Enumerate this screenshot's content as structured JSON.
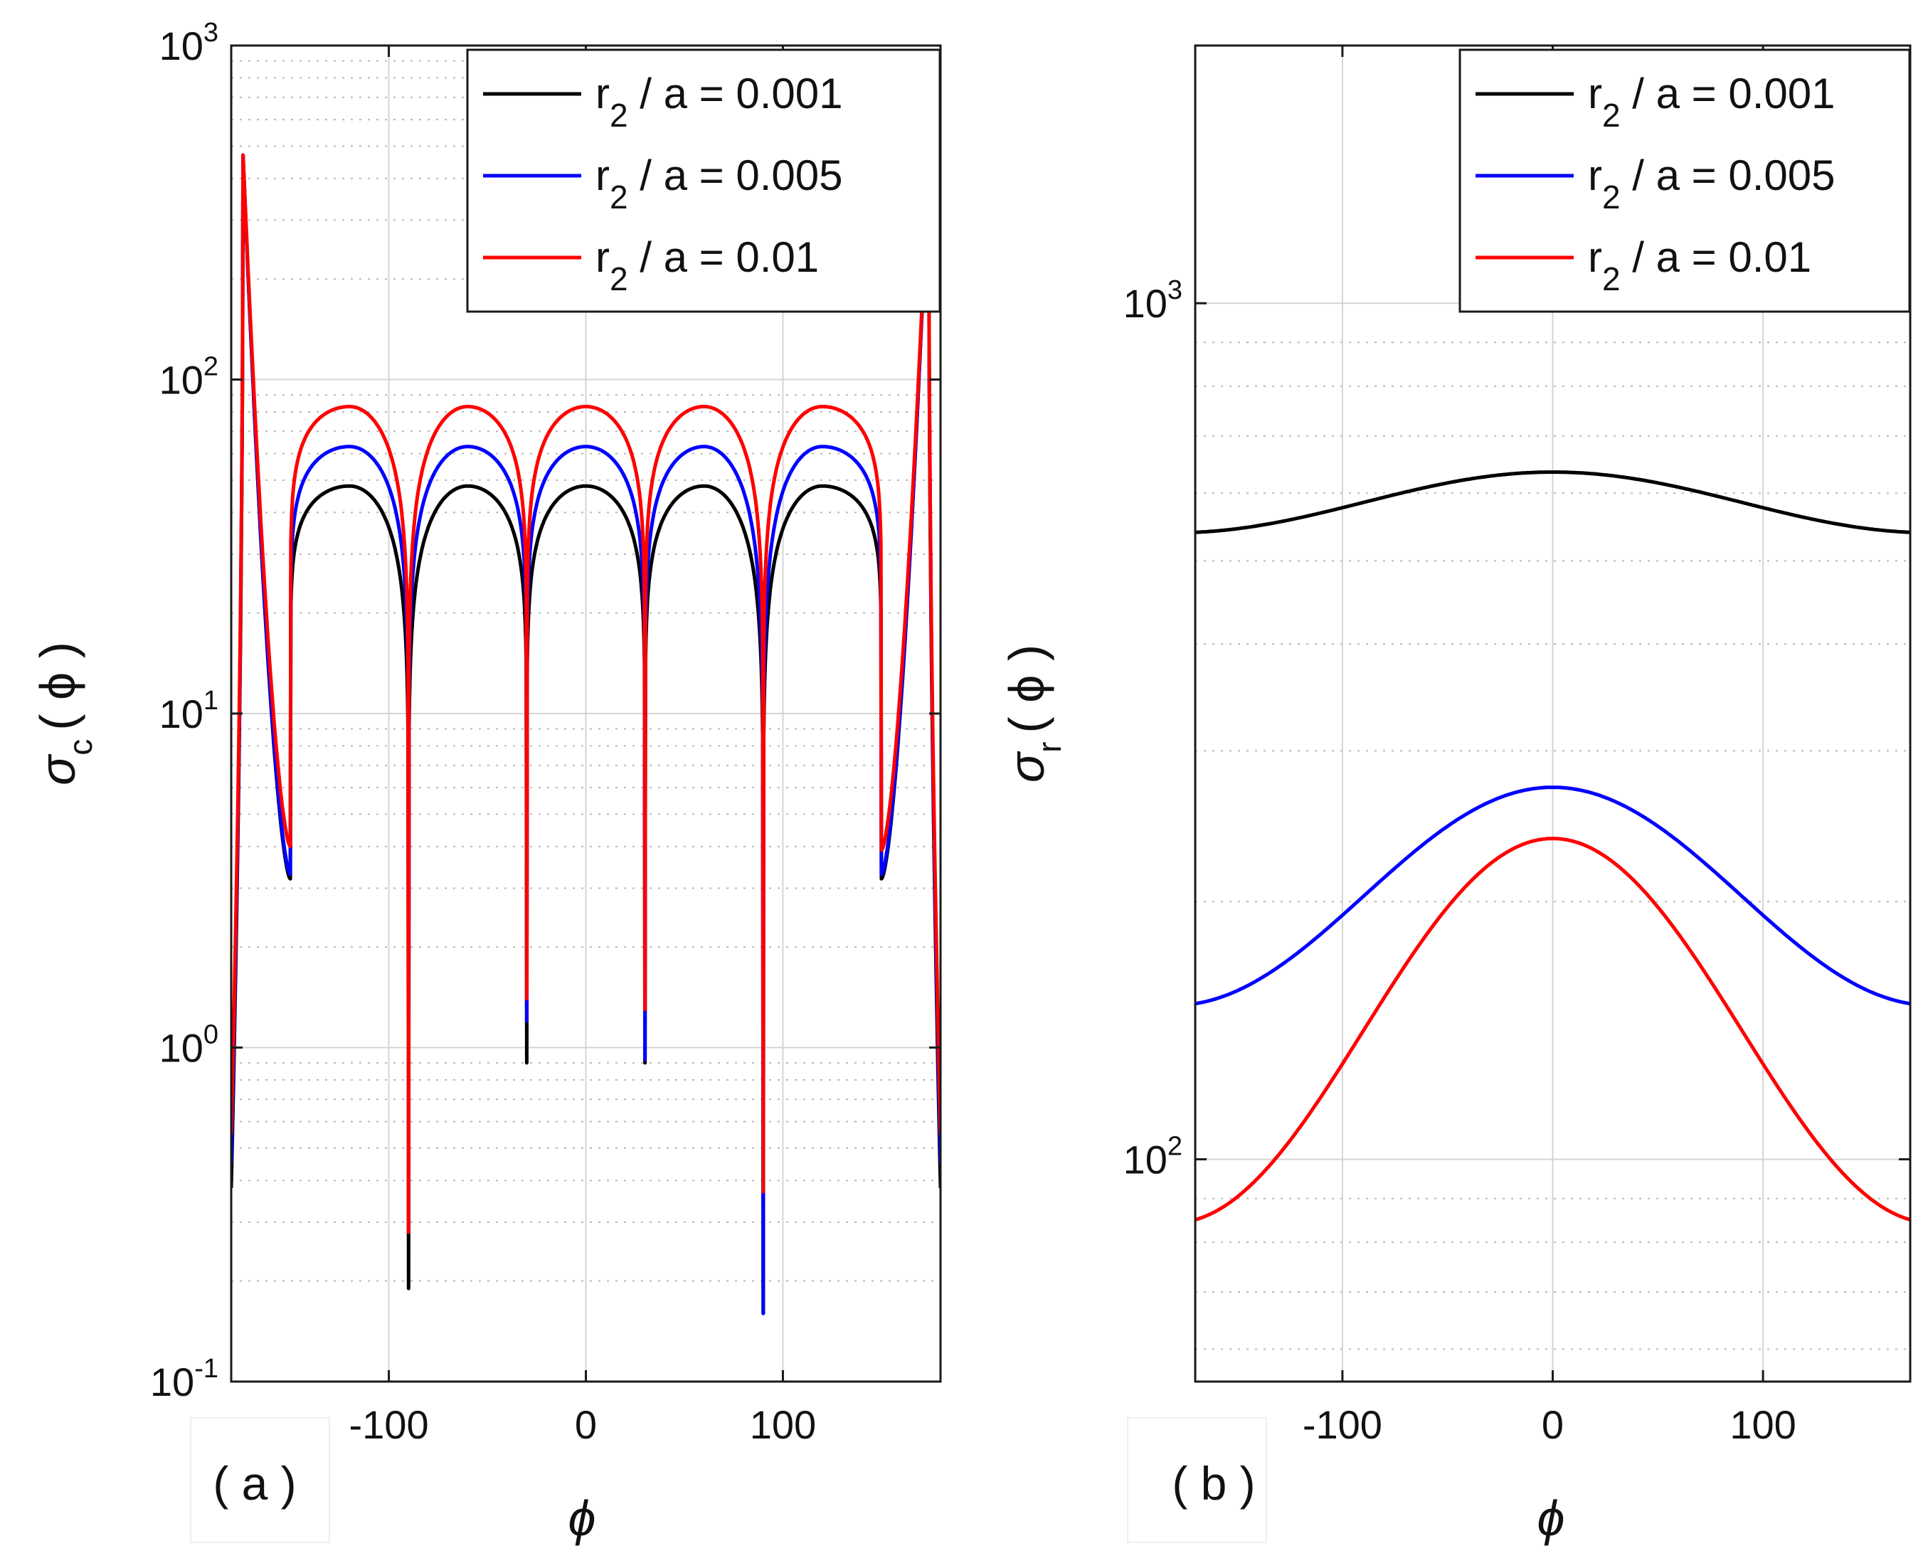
{
  "chart_data": [
    {
      "type": "line",
      "panel_label": "( a )",
      "xlabel": "ϕ",
      "ylabel": {
        "base": "σ",
        "subscript": "c",
        "arg": "( ϕ )"
      },
      "yscale": "log",
      "xlim": [
        -180,
        180
      ],
      "ylim": [
        0.1,
        1000
      ],
      "xticks": [
        -100,
        0,
        100
      ],
      "xtick_labels": [
        "-100",
        "0",
        "100"
      ],
      "yticks": [
        0.1,
        1,
        10,
        100,
        1000
      ],
      "ytick_labels": [
        {
          "base": "10",
          "exp": "-1"
        },
        {
          "base": "10",
          "exp": "0"
        },
        {
          "base": "10",
          "exp": "1"
        },
        {
          "base": "10",
          "exp": "2"
        },
        {
          "base": "10",
          "exp": "3"
        }
      ],
      "grid": true,
      "legend_position": "top-right",
      "legend": [
        {
          "r": "r",
          "sub": "2",
          "rest": " / a = 0.001",
          "color": "#000000"
        },
        {
          "r": "r",
          "sub": "2",
          "rest": " / a = 0.005",
          "color": "#0000ff"
        },
        {
          "r": "r",
          "sub": "2",
          "rest": " / a = 0.01",
          "color": "#ff0000"
        }
      ],
      "series": [
        {
          "color": "#000000",
          "peak": 48,
          "cusp_min": {
            "-150": 3.2,
            "-90": 0.19,
            "-30": 0.9,
            "30": 0.9,
            "90": 0.16,
            "150": 3.2
          },
          "edge_max": 470,
          "edge_min": 0.38
        },
        {
          "color": "#0000ff",
          "peak": 63,
          "cusp_min": {
            "-150": 3.3,
            "-90": 0.28,
            "-30": 1.2,
            "30": 0.92,
            "90": 0.16,
            "150": 3.3
          },
          "edge_max": 470,
          "edge_min": 0.45
        },
        {
          "color": "#ff0000",
          "peak": 83,
          "cusp_min": {
            "-150": 4.0,
            "-90": 0.28,
            "-30": 1.4,
            "30": 1.3,
            "90": 0.37,
            "150": 3.9
          },
          "edge_max": 470,
          "edge_min": 0.55
        }
      ]
    },
    {
      "type": "line",
      "panel_label": "( b )",
      "xlabel": "ϕ",
      "ylabel": {
        "base": "σ",
        "subscript": "r",
        "arg": "( ϕ )"
      },
      "yscale": "log",
      "xlim": [
        -170,
        170
      ],
      "ylim": [
        55,
        2000
      ],
      "xticks": [
        -100,
        0,
        100
      ],
      "xtick_labels": [
        "-100",
        "0",
        "100"
      ],
      "yticks": [
        100,
        1000
      ],
      "ytick_labels": [
        {
          "base": "10",
          "exp": "2"
        },
        {
          "base": "10",
          "exp": "3"
        }
      ],
      "grid": true,
      "legend_position": "top-right",
      "legend": [
        {
          "r": "r",
          "sub": "2",
          "rest": " / a = 0.001",
          "color": "#000000"
        },
        {
          "r": "r",
          "sub": "2",
          "rest": " / a = 0.005",
          "color": "#0000ff"
        },
        {
          "r": "r",
          "sub": "2",
          "rest": " / a = 0.01",
          "color": "#ff0000"
        }
      ],
      "series": [
        {
          "color": "#000000",
          "x": [
            -170,
            -100,
            0,
            100,
            170
          ],
          "y": [
            540,
            580,
            635,
            580,
            540
          ]
        },
        {
          "color": "#0000ff",
          "x": [
            -170,
            -100,
            0,
            100,
            170
          ],
          "y": [
            152,
            188,
            272,
            188,
            152
          ]
        },
        {
          "color": "#ff0000",
          "x": [
            -170,
            -100,
            0,
            100,
            170
          ],
          "y": [
            85,
            118,
            237,
            118,
            85
          ]
        }
      ]
    }
  ]
}
